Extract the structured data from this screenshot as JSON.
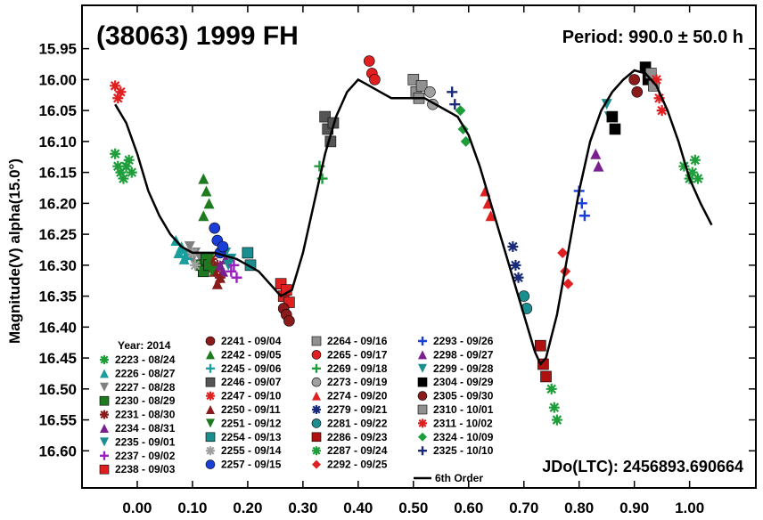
{
  "chart_data": {
    "type": "scatter",
    "title": "(38063) 1999 FH",
    "period_label": "Period: 990.0 ± 50.0 h",
    "jdo_label": "JDo(LTC): 2456893.690664",
    "ylabel": "Magnitude(V) alpha(15.0°)",
    "xlabel": "",
    "xlim": [
      -0.1,
      1.12
    ],
    "ylim": [
      16.66,
      15.88
    ],
    "x_ticks": [
      "0.00",
      "0.10",
      "0.20",
      "0.30",
      "0.40",
      "0.50",
      "0.60",
      "0.70",
      "0.80",
      "0.90",
      "1.00"
    ],
    "y_ticks": [
      "15.95",
      "16.00",
      "16.05",
      "16.10",
      "16.15",
      "16.20",
      "16.25",
      "16.30",
      "16.35",
      "16.40",
      "16.45",
      "16.50",
      "16.55",
      "16.60"
    ],
    "grid": false,
    "legend_title": "Year: 2014",
    "legend_placement": "bottom",
    "fit_label": "6th Order",
    "fit_curve": [
      [
        -0.04,
        16.04
      ],
      [
        -0.02,
        16.07
      ],
      [
        0.0,
        16.12
      ],
      [
        0.02,
        16.18
      ],
      [
        0.04,
        16.22
      ],
      [
        0.06,
        16.25
      ],
      [
        0.08,
        16.27
      ],
      [
        0.1,
        16.28
      ],
      [
        0.12,
        16.28
      ],
      [
        0.14,
        16.28
      ],
      [
        0.16,
        16.285
      ],
      [
        0.18,
        16.29
      ],
      [
        0.2,
        16.3
      ],
      [
        0.22,
        16.31
      ],
      [
        0.24,
        16.33
      ],
      [
        0.26,
        16.35
      ],
      [
        0.28,
        16.34
      ],
      [
        0.3,
        16.28
      ],
      [
        0.32,
        16.2
      ],
      [
        0.34,
        16.12
      ],
      [
        0.36,
        16.06
      ],
      [
        0.38,
        16.02
      ],
      [
        0.4,
        16.0
      ],
      [
        0.42,
        16.01
      ],
      [
        0.44,
        16.02
      ],
      [
        0.46,
        16.03
      ],
      [
        0.48,
        16.03
      ],
      [
        0.5,
        16.03
      ],
      [
        0.52,
        16.03
      ],
      [
        0.54,
        16.04
      ],
      [
        0.56,
        16.05
      ],
      [
        0.58,
        16.06
      ],
      [
        0.6,
        16.09
      ],
      [
        0.62,
        16.14
      ],
      [
        0.64,
        16.2
      ],
      [
        0.66,
        16.26
      ],
      [
        0.68,
        16.32
      ],
      [
        0.7,
        16.38
      ],
      [
        0.72,
        16.44
      ],
      [
        0.73,
        16.46
      ],
      [
        0.74,
        16.45
      ],
      [
        0.76,
        16.38
      ],
      [
        0.78,
        16.28
      ],
      [
        0.8,
        16.18
      ],
      [
        0.82,
        16.1
      ],
      [
        0.84,
        16.05
      ],
      [
        0.86,
        16.02
      ],
      [
        0.88,
        16.0
      ],
      [
        0.9,
        15.985
      ],
      [
        0.92,
        15.99
      ],
      [
        0.94,
        16.01
      ],
      [
        0.96,
        16.05
      ],
      [
        0.98,
        16.1
      ],
      [
        1.0,
        16.16
      ],
      [
        1.02,
        16.2
      ],
      [
        1.04,
        16.235
      ]
    ],
    "series": [
      {
        "name": "2223 - 08/24",
        "color": "#1e9e3a",
        "marker": "star",
        "points": [
          [
            -0.04,
            16.12
          ],
          [
            -0.035,
            16.14
          ],
          [
            -0.03,
            16.15
          ],
          [
            -0.025,
            16.16
          ],
          [
            -0.02,
            16.14
          ],
          [
            -0.015,
            16.13
          ],
          [
            -0.01,
            16.15
          ],
          [
            0.99,
            16.14
          ],
          [
            1.0,
            16.16
          ],
          [
            1.005,
            16.15
          ],
          [
            1.01,
            16.13
          ],
          [
            1.015,
            16.16
          ]
        ]
      },
      {
        "name": "2226 - 08/27",
        "color": "#1b9e9e",
        "marker": "triangle-up",
        "points": [
          [
            0.07,
            16.26
          ],
          [
            0.075,
            16.28
          ],
          [
            0.08,
            16.27
          ],
          [
            0.085,
            16.29
          ],
          [
            0.09,
            16.28
          ]
        ]
      },
      {
        "name": "2227 - 08/28",
        "color": "#808080",
        "marker": "triangle-down",
        "points": [
          [
            0.095,
            16.27
          ],
          [
            0.1,
            16.29
          ],
          [
            0.105,
            16.28
          ],
          [
            0.11,
            16.3
          ],
          [
            0.115,
            16.29
          ]
        ]
      },
      {
        "name": "2230 - 08/29",
        "color": "#1e7a1e",
        "marker": "square",
        "points": [
          [
            0.115,
            16.3
          ],
          [
            0.12,
            16.31
          ],
          [
            0.125,
            16.29
          ],
          [
            0.13,
            16.3
          ]
        ]
      },
      {
        "name": "2231 - 08/30",
        "color": "#8b1a1a",
        "marker": "star",
        "points": [
          [
            0.135,
            16.29
          ],
          [
            0.14,
            16.31
          ],
          [
            0.145,
            16.3
          ],
          [
            0.15,
            16.32
          ]
        ]
      },
      {
        "name": "2234 - 08/31",
        "color": "#7a1f8f",
        "marker": "triangle-up",
        "points": [
          [
            0.15,
            16.3
          ],
          [
            0.155,
            16.31
          ],
          [
            0.16,
            16.29
          ]
        ]
      },
      {
        "name": "2235 - 09/01",
        "color": "#1b8f8f",
        "marker": "triangle-down",
        "points": [
          [
            0.16,
            16.28
          ],
          [
            0.165,
            16.3
          ],
          [
            0.17,
            16.29
          ]
        ]
      },
      {
        "name": "2237 - 09/02",
        "color": "#9b1fbf",
        "marker": "plus",
        "points": [
          [
            0.17,
            16.31
          ],
          [
            0.175,
            16.3
          ],
          [
            0.18,
            16.32
          ]
        ]
      },
      {
        "name": "2238 - 09/03",
        "color": "#e02020",
        "marker": "square",
        "points": [
          [
            0.26,
            16.33
          ],
          [
            0.265,
            16.35
          ],
          [
            0.27,
            16.34
          ],
          [
            0.275,
            16.36
          ]
        ]
      },
      {
        "name": "2241 - 09/04",
        "color": "#8b1a1a",
        "marker": "circle",
        "points": [
          [
            0.265,
            16.37
          ],
          [
            0.27,
            16.38
          ],
          [
            0.275,
            16.39
          ]
        ]
      },
      {
        "name": "2242 - 09/05",
        "color": "#1e7a1e",
        "marker": "triangle-up",
        "points": [
          [
            0.12,
            16.16
          ],
          [
            0.125,
            16.18
          ],
          [
            0.13,
            16.2
          ],
          [
            0.12,
            16.22
          ]
        ]
      },
      {
        "name": "2245 - 09/06",
        "color": "#1b9e9e",
        "marker": "plus",
        "points": [
          [
            0.08,
            16.28
          ],
          [
            0.09,
            16.29
          ]
        ]
      },
      {
        "name": "2246 - 09/07",
        "color": "#555555",
        "marker": "square",
        "points": [
          [
            0.34,
            16.06
          ],
          [
            0.345,
            16.08
          ],
          [
            0.35,
            16.1
          ],
          [
            0.355,
            16.07
          ]
        ]
      },
      {
        "name": "2247 - 09/10",
        "color": "#e02020",
        "marker": "star",
        "points": [
          [
            -0.04,
            16.01
          ],
          [
            -0.035,
            16.03
          ],
          [
            -0.03,
            16.02
          ]
        ]
      },
      {
        "name": "2250 - 09/11",
        "color": "#8b1a1a",
        "marker": "triangle-up",
        "points": [
          [
            0.14,
            16.31
          ],
          [
            0.145,
            16.33
          ],
          [
            0.15,
            16.32
          ]
        ]
      },
      {
        "name": "2251 - 09/12",
        "color": "#1e7a1e",
        "marker": "triangle-down",
        "points": [
          [
            0.13,
            16.29
          ],
          [
            0.135,
            16.31
          ]
        ]
      },
      {
        "name": "2254 - 09/13",
        "color": "#1b8f8f",
        "marker": "square",
        "points": [
          [
            0.2,
            16.28
          ],
          [
            0.205,
            16.3
          ]
        ]
      },
      {
        "name": "2255 - 09/14",
        "color": "#a0a0a0",
        "marker": "star",
        "points": [
          [
            0.1,
            16.28
          ],
          [
            0.105,
            16.3
          ]
        ]
      },
      {
        "name": "2257 - 09/15",
        "color": "#1a3fd9",
        "marker": "circle",
        "points": [
          [
            0.14,
            16.24
          ],
          [
            0.145,
            16.26
          ],
          [
            0.15,
            16.28
          ],
          [
            0.155,
            16.27
          ]
        ]
      },
      {
        "name": "2264 - 09/16",
        "color": "#909090",
        "marker": "square",
        "points": [
          [
            0.5,
            16.0
          ],
          [
            0.505,
            16.02
          ],
          [
            0.51,
            16.03
          ],
          [
            0.515,
            16.01
          ]
        ]
      },
      {
        "name": "2265 - 09/17",
        "color": "#e02020",
        "marker": "circle",
        "points": [
          [
            0.42,
            15.97
          ],
          [
            0.425,
            15.99
          ],
          [
            0.43,
            16.0
          ]
        ]
      },
      {
        "name": "2269 - 09/18",
        "color": "#1e9e3a",
        "marker": "plus",
        "points": [
          [
            0.33,
            16.14
          ],
          [
            0.335,
            16.16
          ]
        ]
      },
      {
        "name": "2273 - 09/19",
        "color": "#a0a0a0",
        "marker": "circle",
        "points": [
          [
            0.53,
            16.02
          ],
          [
            0.535,
            16.04
          ]
        ]
      },
      {
        "name": "2274 - 09/20",
        "color": "#e02020",
        "marker": "triangle-up",
        "points": [
          [
            0.63,
            16.18
          ],
          [
            0.635,
            16.2
          ],
          [
            0.64,
            16.22
          ]
        ]
      },
      {
        "name": "2279 - 09/21",
        "color": "#1a2a7a",
        "marker": "star",
        "points": [
          [
            0.68,
            16.27
          ],
          [
            0.685,
            16.3
          ],
          [
            0.69,
            16.32
          ]
        ]
      },
      {
        "name": "2281 - 09/22",
        "color": "#1b8f8f",
        "marker": "circle",
        "points": [
          [
            0.7,
            16.35
          ],
          [
            0.705,
            16.37
          ]
        ]
      },
      {
        "name": "2286 - 09/23",
        "color": "#b01010",
        "marker": "square",
        "points": [
          [
            0.73,
            16.43
          ],
          [
            0.735,
            16.46
          ],
          [
            0.74,
            16.48
          ]
        ]
      },
      {
        "name": "2287 - 09/24",
        "color": "#1e9e3a",
        "marker": "star",
        "points": [
          [
            0.75,
            16.5
          ],
          [
            0.755,
            16.53
          ],
          [
            0.76,
            16.55
          ]
        ]
      },
      {
        "name": "2292 - 09/25",
        "color": "#e02020",
        "marker": "diamond",
        "points": [
          [
            0.77,
            16.28
          ],
          [
            0.775,
            16.31
          ],
          [
            0.78,
            16.33
          ]
        ]
      },
      {
        "name": "2293 - 09/26",
        "color": "#1a3fd9",
        "marker": "plus",
        "points": [
          [
            0.8,
            16.18
          ],
          [
            0.805,
            16.2
          ],
          [
            0.81,
            16.22
          ]
        ]
      },
      {
        "name": "2298 - 09/27",
        "color": "#7a1f8f",
        "marker": "triangle-up",
        "points": [
          [
            0.83,
            16.12
          ],
          [
            0.835,
            16.14
          ]
        ]
      },
      {
        "name": "2299 - 09/28",
        "color": "#1b8f8f",
        "marker": "triangle-down",
        "points": [
          [
            0.85,
            16.04
          ],
          [
            0.855,
            16.06
          ]
        ]
      },
      {
        "name": "2304 - 09/29",
        "color": "#000000",
        "marker": "square",
        "points": [
          [
            0.86,
            16.06
          ],
          [
            0.865,
            16.08
          ],
          [
            0.92,
            15.98
          ],
          [
            0.925,
            16.0
          ]
        ]
      },
      {
        "name": "2305 - 09/30",
        "color": "#8b1a1a",
        "marker": "circle",
        "points": [
          [
            0.9,
            16.0
          ],
          [
            0.905,
            16.02
          ]
        ]
      },
      {
        "name": "2310 - 10/01",
        "color": "#909090",
        "marker": "square",
        "points": [
          [
            0.93,
            15.99
          ],
          [
            0.935,
            16.01
          ]
        ]
      },
      {
        "name": "2311 - 10/02",
        "color": "#e02020",
        "marker": "star",
        "points": [
          [
            0.94,
            16.0
          ],
          [
            0.945,
            16.03
          ],
          [
            0.95,
            16.05
          ]
        ]
      },
      {
        "name": "2324 - 10/09",
        "color": "#1e9e3a",
        "marker": "diamond",
        "points": [
          [
            0.585,
            16.05
          ],
          [
            0.59,
            16.08
          ],
          [
            0.595,
            16.1
          ]
        ]
      },
      {
        "name": "2325 - 10/10",
        "color": "#1a2a7a",
        "marker": "plus",
        "points": [
          [
            0.57,
            16.02
          ],
          [
            0.575,
            16.04
          ]
        ]
      }
    ]
  }
}
